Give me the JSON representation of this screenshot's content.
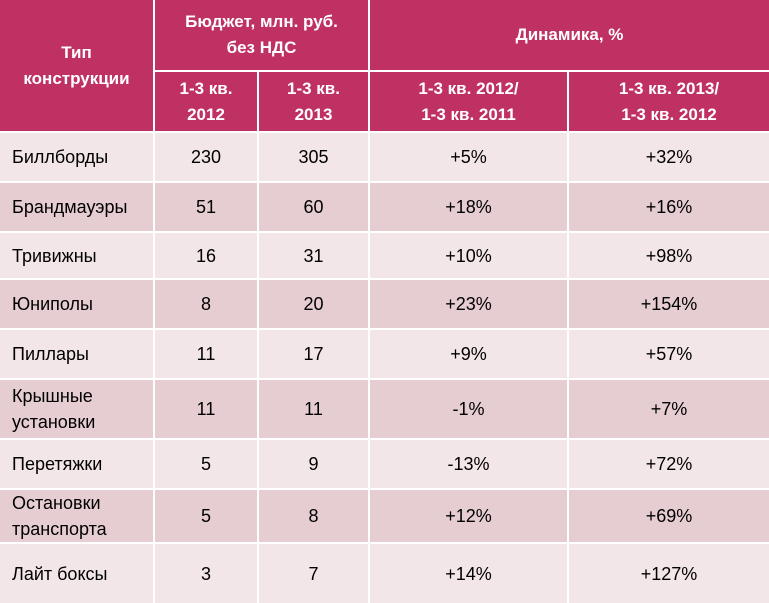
{
  "header": {
    "type": "Тип\nконструкции",
    "budget": "Бюджет, млн. руб.\nбез НДС",
    "dynamics": "Динамика, %",
    "sub": [
      "1-3 кв.\n2012",
      "1-3 кв.\n2013",
      "1-3 кв. 2012/\n1-3 кв. 2011",
      "1-3 кв. 2013/\n1-3 кв. 2012"
    ]
  },
  "rows": [
    {
      "name": "Биллборды",
      "b2012": "230",
      "b2013": "305",
      "d12": "+5%",
      "d13": "+32%"
    },
    {
      "name": "Брандмауэры",
      "b2012": "51",
      "b2013": "60",
      "d12": "+18%",
      "d13": "+16%"
    },
    {
      "name": "Тривижны",
      "b2012": "16",
      "b2013": "31",
      "d12": "+10%",
      "d13": "+98%"
    },
    {
      "name": "Юниполы",
      "b2012": "8",
      "b2013": "20",
      "d12": "+23%",
      "d13": "+154%"
    },
    {
      "name": "Пиллары",
      "b2012": "11",
      "b2013": "17",
      "d12": "+9%",
      "d13": "+57%"
    },
    {
      "name": "Крышные\nустановки",
      "b2012": "11",
      "b2013": "11",
      "d12": "-1%",
      "d13": "+7%"
    },
    {
      "name": "Перетяжки",
      "b2012": "5",
      "b2013": "9",
      "d12": "-13%",
      "d13": "+72%"
    },
    {
      "name": "Остановки\nтранспорта",
      "b2012": "5",
      "b2013": "8",
      "d12": "+12%",
      "d13": "+69%"
    },
    {
      "name": "Лайт боксы",
      "b2012": "3",
      "b2013": "7",
      "d12": "+14%",
      "d13": "+127%"
    }
  ]
}
